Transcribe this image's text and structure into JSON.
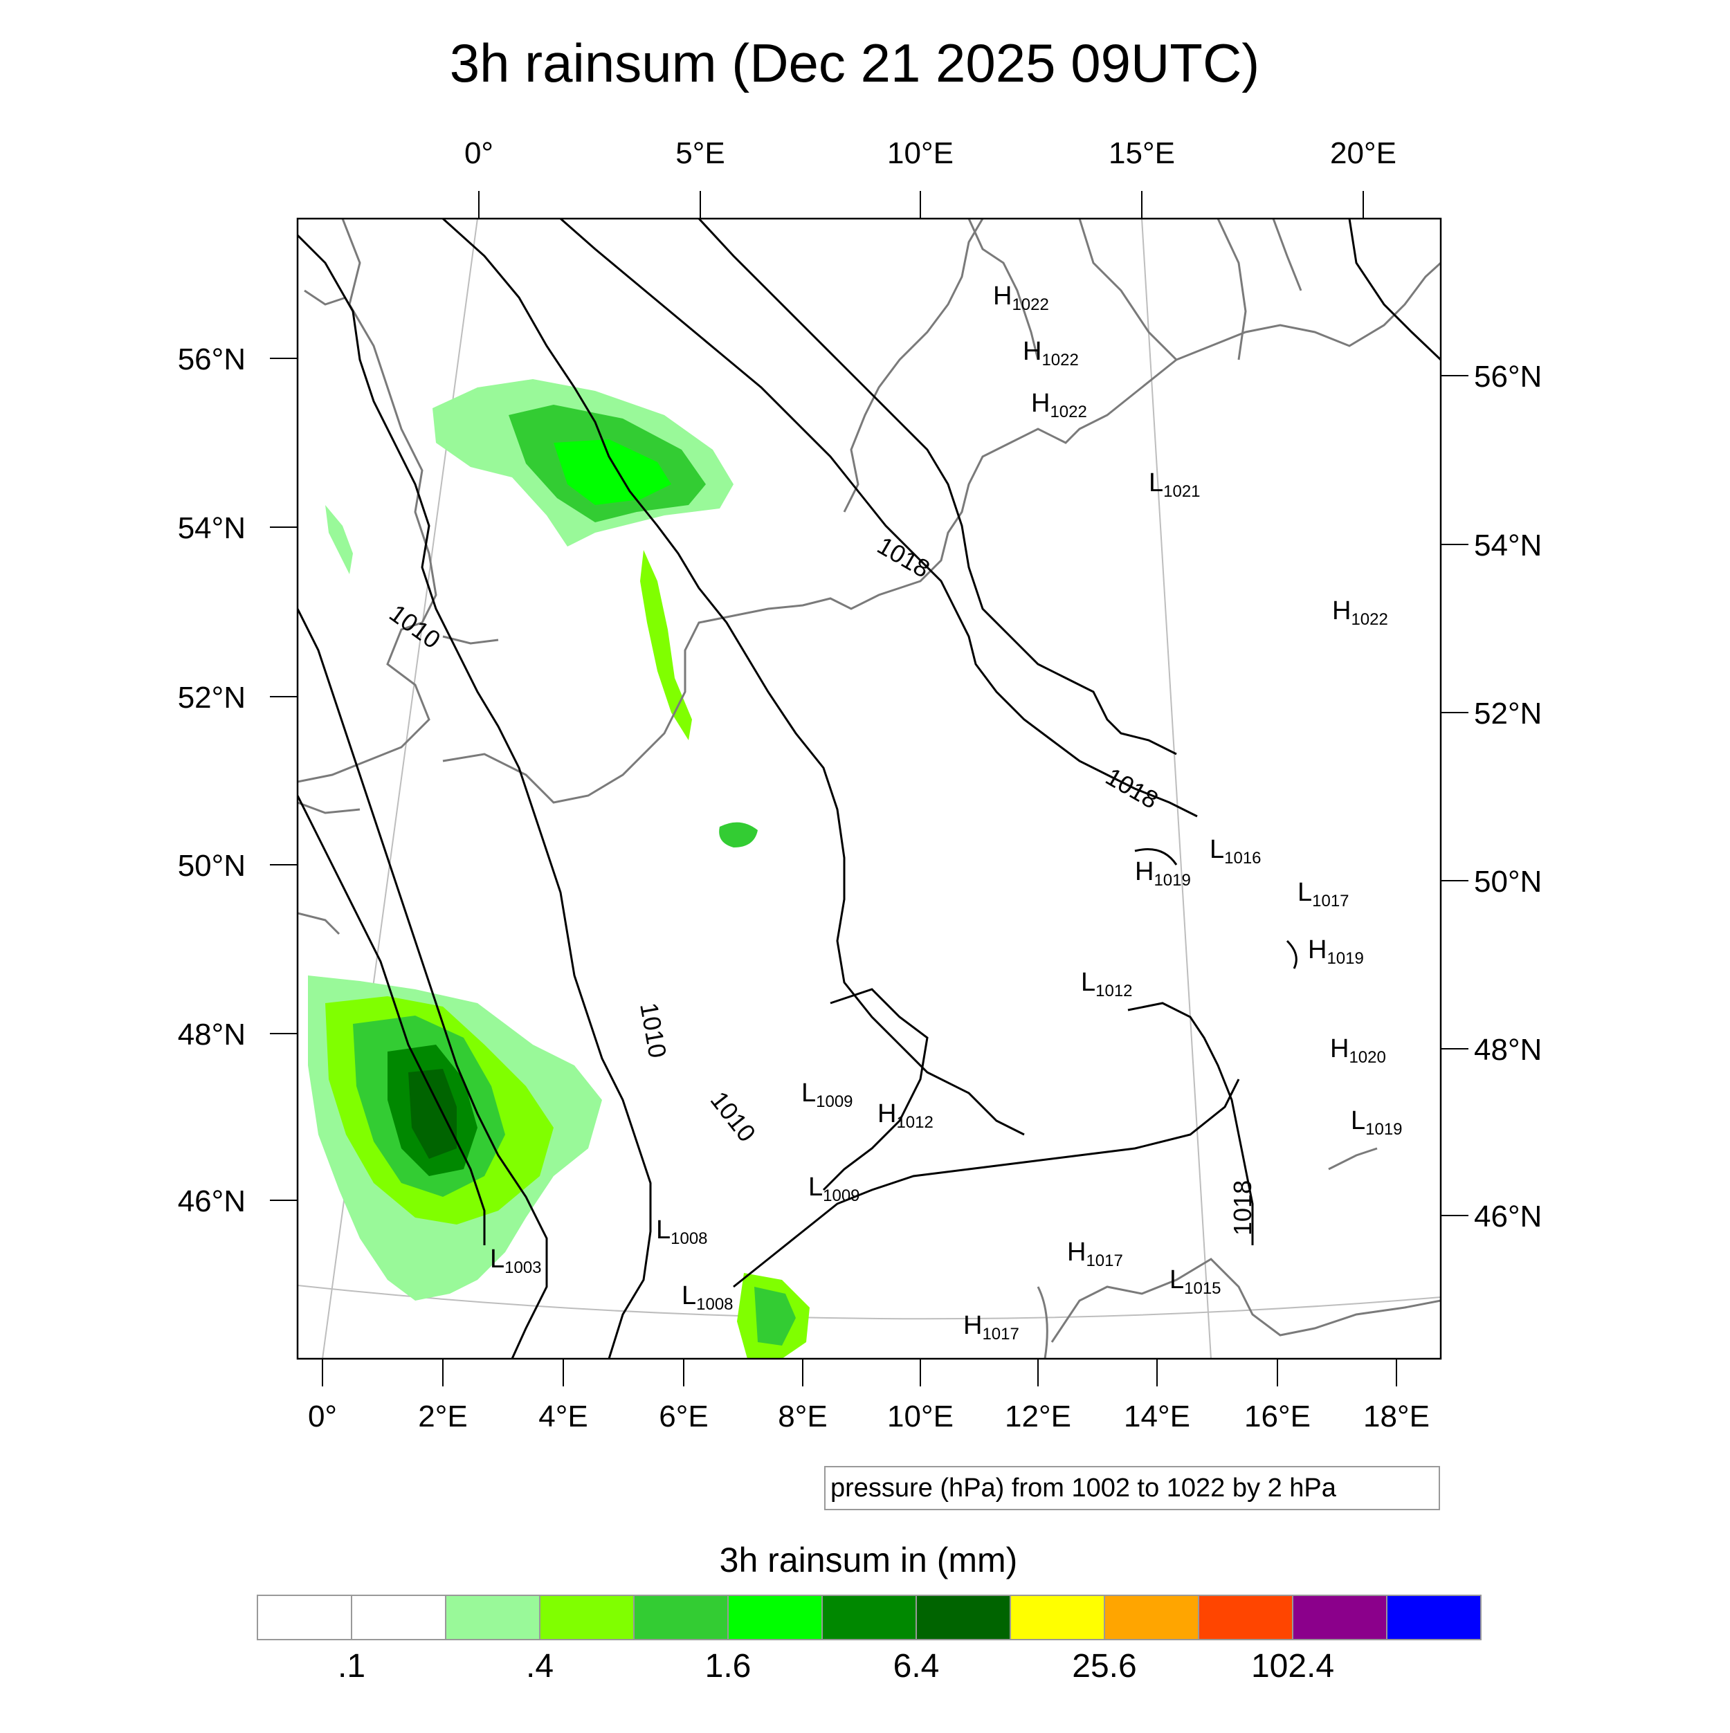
{
  "title": "3h rainsum (Dec 21 2025 09UTC)",
  "axes": {
    "top_lon_labels": [
      "0°",
      "5°E",
      "10°E",
      "15°E",
      "20°E"
    ],
    "bottom_lon_labels": [
      "0°",
      "2°E",
      "4°E",
      "6°E",
      "8°E",
      "10°E",
      "12°E",
      "14°E",
      "16°E",
      "18°E"
    ],
    "left_lat_labels": [
      "56°N",
      "54°N",
      "52°N",
      "50°N",
      "48°N",
      "46°N"
    ],
    "right_lat_labels": [
      "56°N",
      "54°N",
      "52°N",
      "50°N",
      "48°N",
      "46°N"
    ]
  },
  "contour_info": "pressure (hPa) from 1002 to 1022 by 2 hPa",
  "isobar_labels": [
    "1010",
    "1010",
    "1010",
    "1018",
    "1018",
    "1018"
  ],
  "pressure_centers": [
    {
      "type": "H",
      "value": "1022"
    },
    {
      "type": "H",
      "value": "1022"
    },
    {
      "type": "H",
      "value": "1022"
    },
    {
      "type": "L",
      "value": "1021"
    },
    {
      "type": "H",
      "value": "1022"
    },
    {
      "type": "L",
      "value": "1016"
    },
    {
      "type": "H",
      "value": "1019"
    },
    {
      "type": "L",
      "value": "1017"
    },
    {
      "type": "H",
      "value": "1019"
    },
    {
      "type": "L",
      "value": "1012"
    },
    {
      "type": "H",
      "value": "1020"
    },
    {
      "type": "L",
      "value": "1009"
    },
    {
      "type": "H",
      "value": "1012"
    },
    {
      "type": "L",
      "value": "1009"
    },
    {
      "type": "L",
      "value": "1019"
    },
    {
      "type": "L",
      "value": "1008"
    },
    {
      "type": "L",
      "value": "1003"
    },
    {
      "type": "L",
      "value": "1008"
    },
    {
      "type": "H",
      "value": "1017"
    },
    {
      "type": "L",
      "value": "1015"
    },
    {
      "type": "H",
      "value": "1017"
    }
  ],
  "colorbar": {
    "title": "3h rainsum in (mm)",
    "colors": [
      "#ffffff",
      "#ffffff",
      "#99f999",
      "#80ff00",
      "#33cc33",
      "#00ff00",
      "#008800",
      "#006400",
      "#ffff00",
      "#ffa500",
      "#ff4500",
      "#8b008b",
      "#0000ff"
    ],
    "labels": [
      ".1",
      ".4",
      "1.6",
      "6.4",
      "25.6",
      "102.4"
    ]
  },
  "colors": {
    "coastline": "#7a7a7a",
    "isobar": "#000000",
    "graticule": "#bdbdbd"
  }
}
